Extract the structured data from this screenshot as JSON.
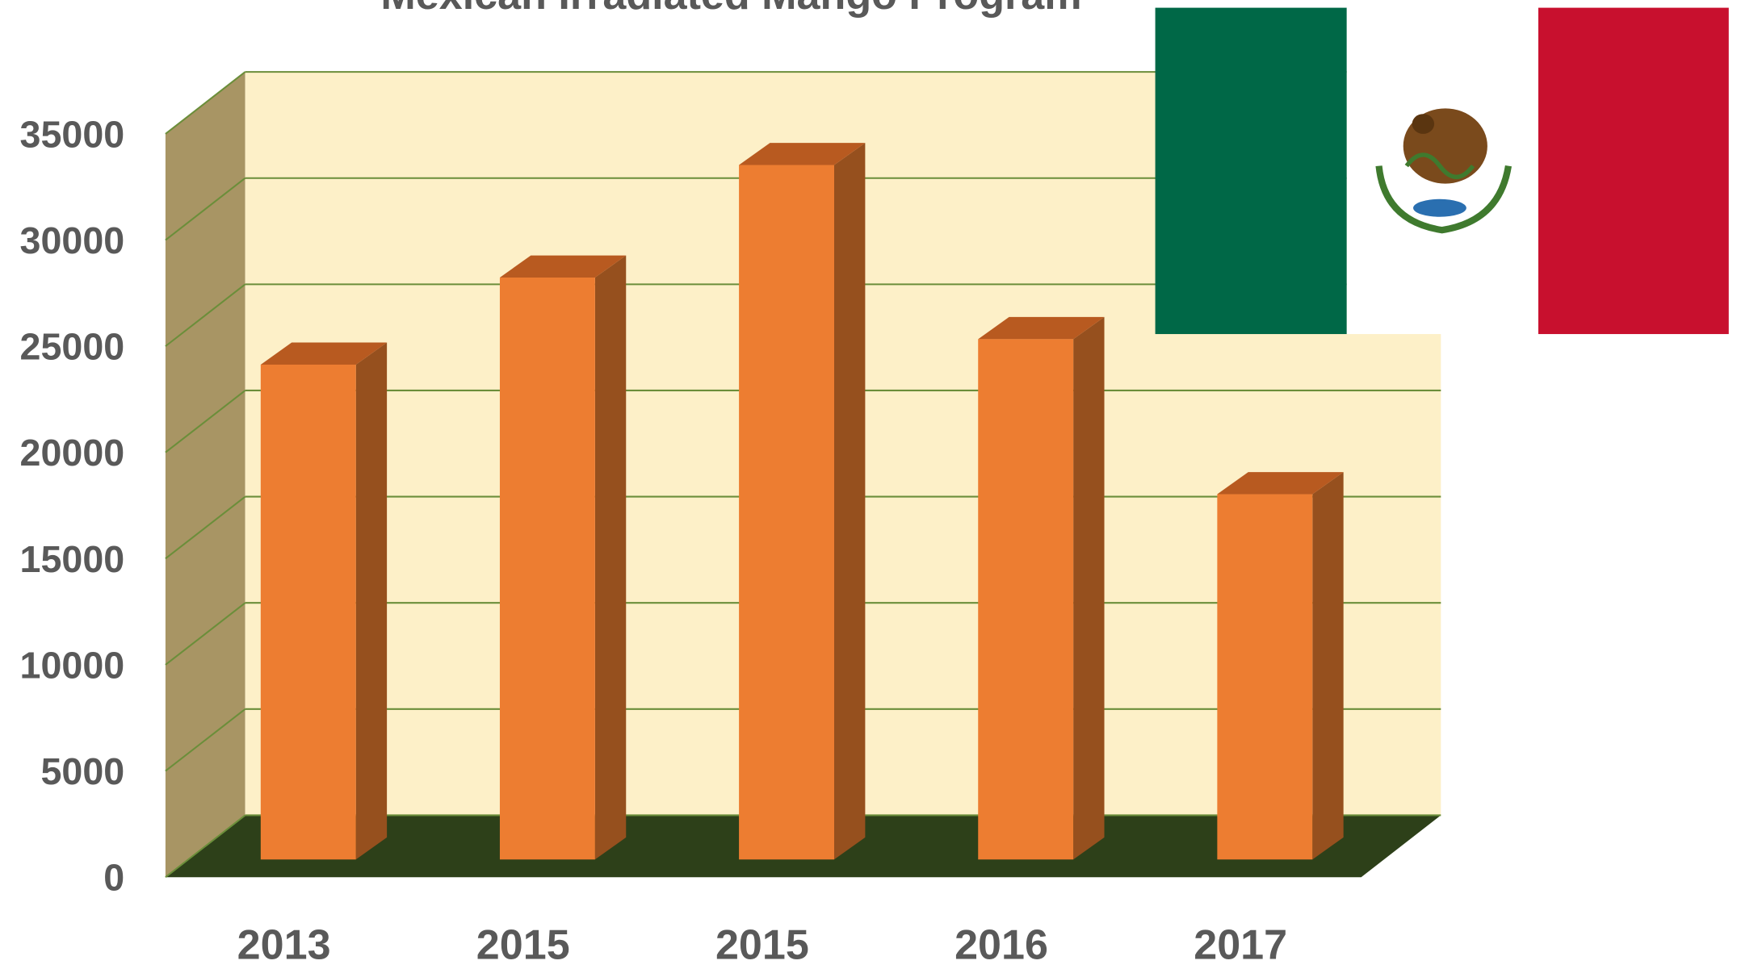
{
  "chart_data": {
    "type": "bar3d",
    "title": "Mexican Irradiated Mango Program",
    "categories": [
      "2013",
      "2015",
      "2015",
      "2016",
      "2017"
    ],
    "values": [
      23300,
      27400,
      32700,
      24500,
      17200
    ],
    "color": "#ed7d31",
    "ylim": [
      0,
      35000
    ],
    "yticks": [
      0,
      5000,
      10000,
      15000,
      20000,
      25000,
      30000,
      35000
    ],
    "grid": true
  }
}
